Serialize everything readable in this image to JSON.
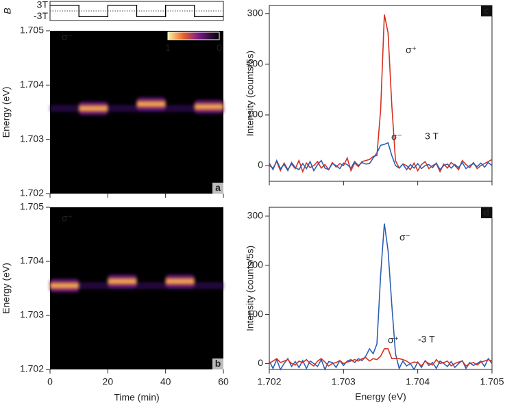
{
  "chart_data": [
    {
      "type": "step",
      "ylabel": "B",
      "x": [
        0,
        10,
        20,
        30,
        40,
        50
      ],
      "values": [
        3,
        -3,
        3,
        -3,
        3,
        -3
      ],
      "xlim": [
        0,
        60
      ],
      "ylim": [
        -5,
        5
      ],
      "yticks": [
        {
          "value": 3,
          "label": "3T"
        },
        {
          "value": -3,
          "label": "-3T"
        }
      ],
      "color": "#000000"
    },
    {
      "type": "heatmap",
      "panel": "a",
      "annotation": "σ⁻",
      "ylabel": "Energy (eV)",
      "xlim": [
        0,
        60
      ],
      "ylim": [
        1.702,
        1.705
      ],
      "xticks": [
        0,
        20,
        40,
        60
      ],
      "yticks": [
        1.702,
        1.703,
        1.704,
        1.705
      ],
      "show_xtick_labels": false,
      "blobs": [
        {
          "start": 10,
          "end": 20,
          "energy": 1.70357
        },
        {
          "start": 30,
          "end": 40,
          "energy": 1.70365
        },
        {
          "start": 50,
          "end": 60,
          "energy": 1.7036
        }
      ],
      "colorbar_ticks": [
        1,
        0
      ]
    },
    {
      "type": "heatmap",
      "panel": "b",
      "annotation": "σ⁺",
      "ylabel": "Energy (eV)",
      "xlabel": "Time (min)",
      "xlim": [
        0,
        60
      ],
      "ylim": [
        1.702,
        1.705
      ],
      "xticks": [
        0,
        20,
        40,
        60
      ],
      "yticks": [
        1.702,
        1.703,
        1.704,
        1.705
      ],
      "show_xtick_labels": true,
      "blobs": [
        {
          "start": 0,
          "end": 10,
          "energy": 1.70355
        },
        {
          "start": 20,
          "end": 30,
          "energy": 1.70363
        },
        {
          "start": 40,
          "end": 50,
          "energy": 1.70363
        }
      ]
    },
    {
      "type": "line",
      "panel": "c",
      "annotation": "3 T",
      "ylabel": "Intensity (counts/5s)",
      "x": [
        1.702,
        1.70205,
        1.7021,
        1.70215,
        1.7022,
        1.70225,
        1.7023,
        1.70235,
        1.7024,
        1.70245,
        1.7025,
        1.70255,
        1.7026,
        1.70265,
        1.7027,
        1.70275,
        1.7028,
        1.70285,
        1.7029,
        1.70295,
        1.703,
        1.70305,
        1.7031,
        1.70315,
        1.7032,
        1.70325,
        1.7033,
        1.70335,
        1.7034,
        1.70345,
        1.7035,
        1.70355,
        1.7036,
        1.70365,
        1.7037,
        1.70375,
        1.7038,
        1.70385,
        1.7039,
        1.70395,
        1.704,
        1.70405,
        1.7041,
        1.70415,
        1.7042,
        1.70425,
        1.7043,
        1.70435,
        1.7044,
        1.70445,
        1.7045,
        1.70455,
        1.7046,
        1.70465,
        1.7047,
        1.70475,
        1.7048,
        1.70485,
        1.7049,
        1.70495,
        1.705
      ],
      "xlim": [
        1.702,
        1.705
      ],
      "ylim": [
        -31,
        316
      ],
      "xticks": [
        1.702,
        1.703,
        1.704,
        1.705
      ],
      "yticks": [
        0,
        100,
        200,
        300
      ],
      "show_xtick_labels": false,
      "series": [
        {
          "name": "σ⁺",
          "color": "#d7301f",
          "values": [
            0,
            -5,
            8,
            -10,
            5,
            -8,
            3,
            -6,
            10,
            -12,
            5,
            -4,
            0,
            8,
            -5,
            2,
            -8,
            6,
            -3,
            4,
            0,
            15,
            -10,
            5,
            -2,
            8,
            10,
            12,
            18,
            20,
            110,
            298,
            262,
            120,
            10,
            -5,
            3,
            0,
            -8,
            5,
            -10,
            2,
            8,
            -6,
            0,
            4,
            -12,
            3,
            -5,
            6,
            0,
            -8,
            10,
            2,
            -4,
            6,
            -6,
            0,
            4,
            8,
            12
          ]
        },
        {
          "name": "σ⁻",
          "color": "#2b5fb4",
          "values": [
            5,
            -8,
            10,
            -6,
            2,
            -10,
            6,
            -4,
            -8,
            4,
            -6,
            8,
            -10,
            2,
            10,
            -5,
            -8,
            4,
            0,
            -6,
            5,
            2,
            -5,
            8,
            0,
            6,
            3,
            4,
            15,
            25,
            40,
            42,
            45,
            20,
            0,
            -5,
            3,
            -8,
            2,
            -5,
            4,
            -6,
            0,
            2,
            -4,
            5,
            -8,
            0,
            3,
            -5,
            2,
            -4,
            6,
            -6,
            0,
            4,
            -2,
            5,
            -3,
            6,
            0
          ]
        }
      ]
    },
    {
      "type": "line",
      "panel": "d",
      "annotation": "-3 T",
      "ylabel": "Intensity (counts/5s)",
      "xlabel": "Energy (eV)",
      "x": [
        1.702,
        1.70205,
        1.7021,
        1.70215,
        1.7022,
        1.70225,
        1.7023,
        1.70235,
        1.7024,
        1.70245,
        1.7025,
        1.70255,
        1.7026,
        1.70265,
        1.7027,
        1.70275,
        1.7028,
        1.70285,
        1.7029,
        1.70295,
        1.703,
        1.70305,
        1.7031,
        1.70315,
        1.7032,
        1.70325,
        1.7033,
        1.70335,
        1.7034,
        1.70345,
        1.7035,
        1.70355,
        1.7036,
        1.70365,
        1.7037,
        1.70375,
        1.7038,
        1.70385,
        1.7039,
        1.70395,
        1.704,
        1.70405,
        1.7041,
        1.70415,
        1.7042,
        1.70425,
        1.7043,
        1.70435,
        1.7044,
        1.70445,
        1.7045,
        1.70455,
        1.7046,
        1.70465,
        1.7047,
        1.70475,
        1.7048,
        1.70485,
        1.7049,
        1.70495,
        1.705
      ],
      "xlim": [
        1.702,
        1.705
      ],
      "ylim": [
        -12,
        318
      ],
      "xticks": [
        1.702,
        1.703,
        1.704,
        1.705
      ],
      "yticks": [
        0,
        100,
        200,
        300
      ],
      "show_xtick_labels": true,
      "series": [
        {
          "name": "σ⁻",
          "color": "#2b5fb4",
          "values": [
            5,
            -10,
            8,
            -12,
            0,
            10,
            -6,
            4,
            -8,
            6,
            -10,
            5,
            0,
            -6,
            8,
            -12,
            4,
            2,
            -8,
            6,
            -4,
            5,
            8,
            2,
            10,
            6,
            15,
            30,
            20,
            40,
            180,
            285,
            230,
            120,
            20,
            -10,
            5,
            -5,
            0,
            -12,
            3,
            -8,
            6,
            -4,
            2,
            -10,
            5,
            0,
            -6,
            4,
            -8,
            0,
            6,
            -10,
            2,
            -4,
            0,
            5,
            -6,
            10,
            0
          ]
        },
        {
          "name": "σ⁺",
          "color": "#d7301f",
          "values": [
            0,
            5,
            10,
            2,
            5,
            8,
            0,
            -3,
            5,
            2,
            8,
            0,
            -5,
            5,
            10,
            3,
            -5,
            0,
            2,
            6,
            0,
            3,
            5,
            8,
            5,
            10,
            12,
            5,
            10,
            8,
            15,
            30,
            30,
            10,
            10,
            10,
            8,
            5,
            0,
            3,
            2,
            -5,
            5,
            0,
            -3,
            8,
            0,
            2,
            5,
            -5,
            0,
            3,
            5,
            -5,
            0,
            2,
            -3,
            3,
            5,
            8,
            5
          ]
        }
      ]
    }
  ]
}
